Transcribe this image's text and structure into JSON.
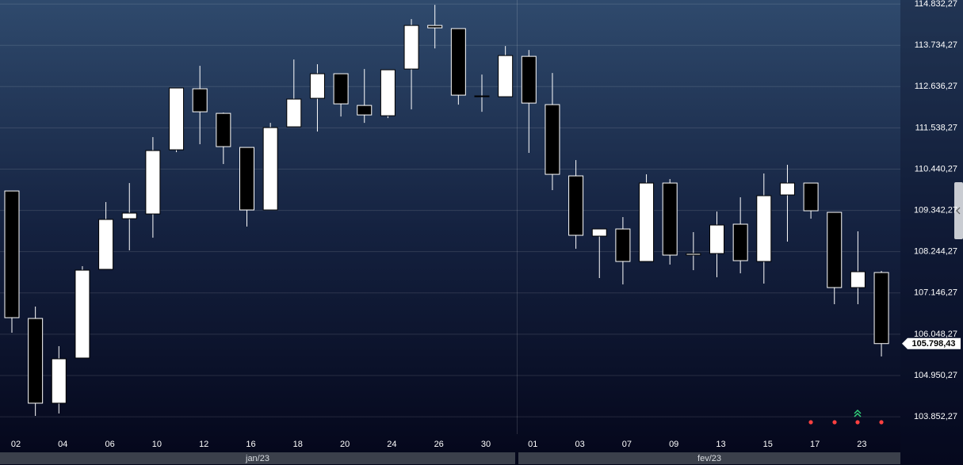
{
  "chart_data": {
    "type": "candlestick",
    "categories": [
      "02",
      null,
      "04",
      null,
      "06",
      null,
      "10",
      null,
      "12",
      null,
      "16",
      null,
      "18",
      null,
      "20",
      null,
      "24",
      null,
      "26",
      null,
      "30",
      null,
      "01",
      null,
      "03",
      null,
      "07",
      null,
      "09",
      null,
      "13",
      null,
      "15",
      null,
      "17",
      null,
      "23",
      null
    ],
    "months": [
      "jan/23",
      "fev/23"
    ],
    "open": [
      109859,
      106467,
      104213,
      105414,
      107774,
      109122,
      109248,
      110955,
      112578,
      111924,
      111018,
      109354,
      111566,
      112325,
      112978,
      112135,
      111861,
      113104,
      114263,
      114179,
      112367,
      112367,
      113441,
      112156,
      110260,
      108658,
      108848,
      107984,
      110070,
      108153,
      108195,
      108975,
      107984,
      109754,
      110070,
      109291,
      107289,
      107689
    ],
    "high": [
      109859,
      106783,
      105730,
      107858,
      109564,
      110070,
      111292,
      112599,
      113189,
      111945,
      111018,
      111671,
      113357,
      113231,
      112978,
      113104,
      113083,
      114432,
      114811,
      114179,
      112957,
      113715,
      113610,
      112999,
      110681,
      108848,
      109164,
      110302,
      110176,
      108764,
      109312,
      109691,
      110323,
      110555,
      110070,
      109291,
      108785,
      107731
    ],
    "low": [
      106088,
      103876,
      103939,
      105414,
      107774,
      108279,
      108616,
      110892,
      111103,
      110576,
      108911,
      109354,
      111566,
      111440,
      111840,
      111671,
      111798,
      112030,
      113652,
      112156,
      111966,
      112367,
      110871,
      109881,
      108321,
      107542,
      107373,
      107984,
      107900,
      107752,
      107563,
      107668,
      107394,
      108511,
      109122,
      106846,
      106846,
      105456
    ],
    "close": [
      106488,
      104213,
      105393,
      107752,
      109101,
      109270,
      110934,
      112599,
      111966,
      111039,
      109354,
      111545,
      112304,
      112978,
      112177,
      111882,
      113083,
      114263,
      114200,
      112409,
      112388,
      113462,
      112198,
      110302,
      108680,
      108848,
      107984,
      110070,
      108153,
      108195,
      108953,
      108005,
      109733,
      110070,
      109333,
      107289,
      107710,
      105798.43
    ],
    "last_price_label": "105.798,43",
    "up_color": "#ffffff",
    "down_color": "#000000",
    "ylim": [
      103390,
      114940
    ],
    "yticks": [
      {
        "value": 103852.27,
        "label": "103.852,27"
      },
      {
        "value": 104950.27,
        "label": "104.950,27"
      },
      {
        "value": 106048.27,
        "label": "106.048,27"
      },
      {
        "value": 107146.27,
        "label": "107.146,27"
      },
      {
        "value": 108244.27,
        "label": "108.244,27"
      },
      {
        "value": 109342.27,
        "label": "109.342,27"
      },
      {
        "value": 110440.27,
        "label": "110.440,27"
      },
      {
        "value": 111538.27,
        "label": "111.538,27"
      },
      {
        "value": 112636.27,
        "label": "112.636,27"
      },
      {
        "value": 113734.27,
        "label": "113.734,27"
      },
      {
        "value": 114832.27,
        "label": "114.832,27"
      }
    ],
    "grid": true
  }
}
